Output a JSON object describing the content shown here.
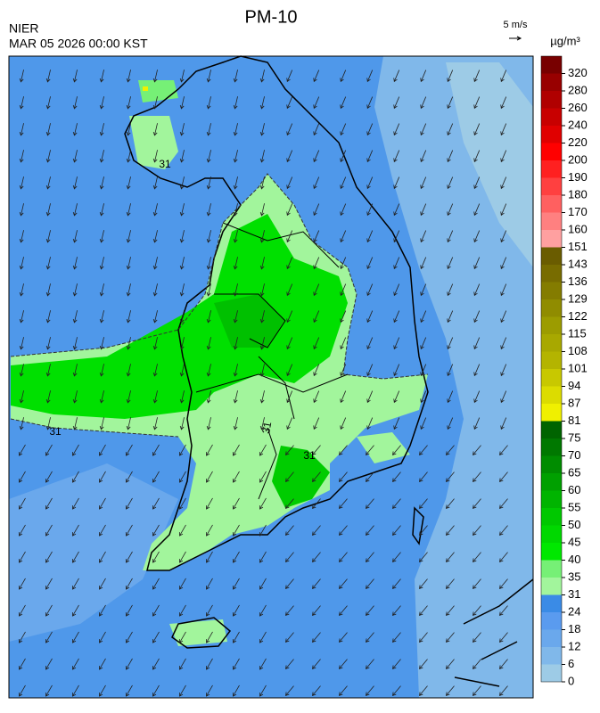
{
  "header": {
    "title": "PM-10",
    "agency": "NIER",
    "datetime": "MAR 05 2026 00:00 KST",
    "vector_key": "5 m/s",
    "unit": "µg/m³"
  },
  "colorbar": {
    "levels": [
      0,
      6,
      12,
      18,
      24,
      31,
      35,
      40,
      45,
      50,
      55,
      60,
      65,
      70,
      75,
      81,
      87,
      94,
      101,
      108,
      115,
      122,
      129,
      136,
      143,
      151,
      160,
      170,
      180,
      190,
      200,
      220,
      240,
      260,
      280,
      320
    ],
    "colors": [
      "#9dcbe6",
      "#80b8ea",
      "#6aa8ec",
      "#5a9bef",
      "#3a8be6",
      "#a2f59c",
      "#76f076",
      "#00e800",
      "#00d800",
      "#00c800",
      "#00b400",
      "#00a000",
      "#008c00",
      "#007800",
      "#006400",
      "#f0f000",
      "#dcdc00",
      "#c8c800",
      "#b4b400",
      "#a8a800",
      "#9c9c00",
      "#908c00",
      "#847c00",
      "#786c00",
      "#6a5c00",
      "#ffa0a0",
      "#ff8080",
      "#ff6060",
      "#ff4040",
      "#ff2020",
      "#ff0000",
      "#e00000",
      "#c80000",
      "#b00000",
      "#980000",
      "#780000"
    ]
  },
  "map": {
    "contour_labels": [
      "31",
      "31",
      "31",
      "31"
    ]
  }
}
